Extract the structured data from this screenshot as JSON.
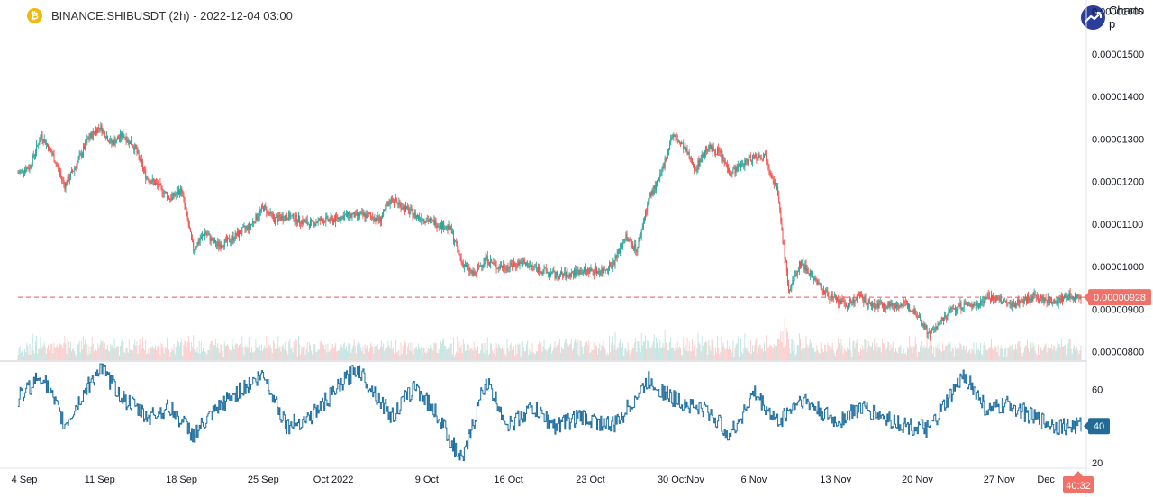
{
  "header": {
    "symbol": "BINANCE:SHIBUSDT (2h) - 2022-12-04 03:00",
    "brand": "Charts p",
    "brand_icon": "trend-up-icon",
    "coin_icon": "binance-coin-icon"
  },
  "colors": {
    "up": "#26a69a",
    "down": "#ef5350",
    "rsi_line": "#1f6f9f",
    "price_badge": "#f0706a",
    "rsi_badge": "#226b97",
    "grid_text": "#131722"
  },
  "chart_data": [
    {
      "type": "candlestick",
      "title": "BINANCE:SHIBUSDT (2h) - 2022-12-04 03:00",
      "x_tick_labels": [
        "4 Sep",
        "11 Sep",
        "18 Sep",
        "25 Sep",
        "Oct 2022",
        "9 Oct",
        "16 Oct",
        "23 Oct",
        "30 Oct",
        "Nov",
        "6 Nov",
        "13 Nov",
        "20 Nov",
        "27 Nov",
        "Dec"
      ],
      "x_tick_dates": [
        "2022-09-04",
        "2022-09-11",
        "2022-09-18",
        "2022-09-25",
        "2022-10-01",
        "2022-10-09",
        "2022-10-16",
        "2022-10-23",
        "2022-10-30",
        "2022-11-01",
        "2022-11-06",
        "2022-11-13",
        "2022-11-20",
        "2022-11-27",
        "2022-12-01"
      ],
      "x_range": [
        "2022-09-04",
        "2022-12-04"
      ],
      "y_tick_labels": [
        "0.00000800",
        "0.00000900",
        "0.00001000",
        "0.00001100",
        "0.00001200",
        "0.00001300",
        "0.00001400",
        "0.00001500",
        "0.00001600"
      ],
      "ylim": [
        7.8e-06,
        1.61e-05
      ],
      "price_path": [
        [
          "2022-09-04",
          1.22e-05
        ],
        [
          "2022-09-05",
          1.235e-05
        ],
        [
          "2022-09-06",
          1.31e-05
        ],
        [
          "2022-09-07",
          1.26e-05
        ],
        [
          "2022-09-08",
          1.19e-05
        ],
        [
          "2022-09-09",
          1.24e-05
        ],
        [
          "2022-09-10",
          1.3e-05
        ],
        [
          "2022-09-11",
          1.33e-05
        ],
        [
          "2022-09-12",
          1.29e-05
        ],
        [
          "2022-09-13",
          1.31e-05
        ],
        [
          "2022-09-14",
          1.28e-05
        ],
        [
          "2022-09-15",
          1.21e-05
        ],
        [
          "2022-09-16",
          1.19e-05
        ],
        [
          "2022-09-17",
          1.16e-05
        ],
        [
          "2022-09-18",
          1.18e-05
        ],
        [
          "2022-09-19",
          1.04e-05
        ],
        [
          "2022-09-20",
          1.08e-05
        ],
        [
          "2022-09-21",
          1.05e-05
        ],
        [
          "2022-09-22",
          1.06e-05
        ],
        [
          "2022-09-23",
          1.08e-05
        ],
        [
          "2022-09-24",
          1.1e-05
        ],
        [
          "2022-09-25",
          1.14e-05
        ],
        [
          "2022-09-26",
          1.11e-05
        ],
        [
          "2022-09-27",
          1.12e-05
        ],
        [
          "2022-09-28",
          1.11e-05
        ],
        [
          "2022-09-29",
          1.1e-05
        ],
        [
          "2022-09-30",
          1.11e-05
        ],
        [
          "2022-10-01",
          1.11e-05
        ],
        [
          "2022-10-02",
          1.12e-05
        ],
        [
          "2022-10-03",
          1.12e-05
        ],
        [
          "2022-10-04",
          1.12e-05
        ],
        [
          "2022-10-05",
          1.11e-05
        ],
        [
          "2022-10-06",
          1.16e-05
        ],
        [
          "2022-10-07",
          1.14e-05
        ],
        [
          "2022-10-08",
          1.12e-05
        ],
        [
          "2022-10-09",
          1.11e-05
        ],
        [
          "2022-10-10",
          1.1e-05
        ],
        [
          "2022-10-11",
          1.09e-05
        ],
        [
          "2022-10-12",
          1.01e-05
        ],
        [
          "2022-10-13",
          9.8e-06
        ],
        [
          "2022-10-14",
          1.02e-05
        ],
        [
          "2022-10-15",
          1e-05
        ],
        [
          "2022-10-16",
          1e-05
        ],
        [
          "2022-10-17",
          1.01e-05
        ],
        [
          "2022-10-18",
          1e-05
        ],
        [
          "2022-10-19",
          9.9e-06
        ],
        [
          "2022-10-20",
          9.8e-06
        ],
        [
          "2022-10-21",
          9.8e-06
        ],
        [
          "2022-10-22",
          9.9e-06
        ],
        [
          "2022-10-23",
          9.9e-06
        ],
        [
          "2022-10-24",
          9.9e-06
        ],
        [
          "2022-10-25",
          1.01e-05
        ],
        [
          "2022-10-26",
          1.07e-05
        ],
        [
          "2022-10-27",
          1.04e-05
        ],
        [
          "2022-10-28",
          1.16e-05
        ],
        [
          "2022-10-29",
          1.21e-05
        ],
        [
          "2022-10-30",
          1.31e-05
        ],
        [
          "2022-10-31",
          1.28e-05
        ],
        [
          "2022-11-01",
          1.23e-05
        ],
        [
          "2022-11-02",
          1.28e-05
        ],
        [
          "2022-11-03",
          1.27e-05
        ],
        [
          "2022-11-04",
          1.22e-05
        ],
        [
          "2022-11-05",
          1.24e-05
        ],
        [
          "2022-11-06",
          1.26e-05
        ],
        [
          "2022-11-07",
          1.26e-05
        ],
        [
          "2022-11-08",
          1.18e-05
        ],
        [
          "2022-11-09",
          9.4e-06
        ],
        [
          "2022-11-10",
          1.01e-05
        ],
        [
          "2022-11-11",
          9.8e-06
        ],
        [
          "2022-11-12",
          9.4e-06
        ],
        [
          "2022-11-13",
          9.2e-06
        ],
        [
          "2022-11-14",
          9.1e-06
        ],
        [
          "2022-11-15",
          9.3e-06
        ],
        [
          "2022-11-16",
          9.1e-06
        ],
        [
          "2022-11-17",
          9.1e-06
        ],
        [
          "2022-11-18",
          9.1e-06
        ],
        [
          "2022-11-19",
          9.1e-06
        ],
        [
          "2022-11-20",
          8.9e-06
        ],
        [
          "2022-11-21",
          8.4e-06
        ],
        [
          "2022-11-22",
          8.7e-06
        ],
        [
          "2022-11-23",
          9e-06
        ],
        [
          "2022-11-24",
          9.1e-06
        ],
        [
          "2022-11-25",
          9.1e-06
        ],
        [
          "2022-11-26",
          9.3e-06
        ],
        [
          "2022-11-27",
          9.2e-06
        ],
        [
          "2022-11-28",
          9.1e-06
        ],
        [
          "2022-11-29",
          9.2e-06
        ],
        [
          "2022-11-30",
          9.3e-06
        ],
        [
          "2022-12-01",
          9.2e-06
        ],
        [
          "2022-12-02",
          9.2e-06
        ],
        [
          "2022-12-03",
          9.3e-06
        ],
        [
          "2022-12-04",
          9.28e-06
        ]
      ],
      "last_price": 9.28e-06,
      "last_price_label": "0.00000928",
      "last_price_line": "dashed",
      "grid": false
    },
    {
      "type": "line",
      "name": "RSI",
      "y_tick_labels": [
        "20",
        "60"
      ],
      "ylim": [
        17,
        75
      ],
      "last_value": 40,
      "last_value_label": "40",
      "path": [
        [
          "2022-09-04",
          55
        ],
        [
          "2022-09-06",
          68
        ],
        [
          "2022-09-08",
          40
        ],
        [
          "2022-09-10",
          62
        ],
        [
          "2022-09-11",
          72
        ],
        [
          "2022-09-13",
          55
        ],
        [
          "2022-09-15",
          45
        ],
        [
          "2022-09-17",
          50
        ],
        [
          "2022-09-19",
          35
        ],
        [
          "2022-09-22",
          55
        ],
        [
          "2022-09-25",
          68
        ],
        [
          "2022-09-27",
          40
        ],
        [
          "2022-09-29",
          45
        ],
        [
          "2022-10-01",
          58
        ],
        [
          "2022-10-03",
          72
        ],
        [
          "2022-10-06",
          45
        ],
        [
          "2022-10-08",
          62
        ],
        [
          "2022-10-10",
          45
        ],
        [
          "2022-10-12",
          20
        ],
        [
          "2022-10-14",
          65
        ],
        [
          "2022-10-16",
          40
        ],
        [
          "2022-10-18",
          50
        ],
        [
          "2022-10-20",
          40
        ],
        [
          "2022-10-22",
          45
        ],
        [
          "2022-10-25",
          40
        ],
        [
          "2022-10-28",
          65
        ],
        [
          "2022-10-30",
          55
        ],
        [
          "2022-11-02",
          48
        ],
        [
          "2022-11-04",
          35
        ],
        [
          "2022-11-06",
          58
        ],
        [
          "2022-11-08",
          42
        ],
        [
          "2022-11-10",
          55
        ],
        [
          "2022-11-13",
          42
        ],
        [
          "2022-11-15",
          50
        ],
        [
          "2022-11-17",
          45
        ],
        [
          "2022-11-19",
          40
        ],
        [
          "2022-11-21",
          38
        ],
        [
          "2022-11-24",
          68
        ],
        [
          "2022-11-26",
          48
        ],
        [
          "2022-11-28",
          52
        ],
        [
          "2022-11-30",
          44
        ],
        [
          "2022-12-02",
          40
        ],
        [
          "2022-12-04",
          40
        ]
      ]
    }
  ],
  "time_badge": "40:32"
}
